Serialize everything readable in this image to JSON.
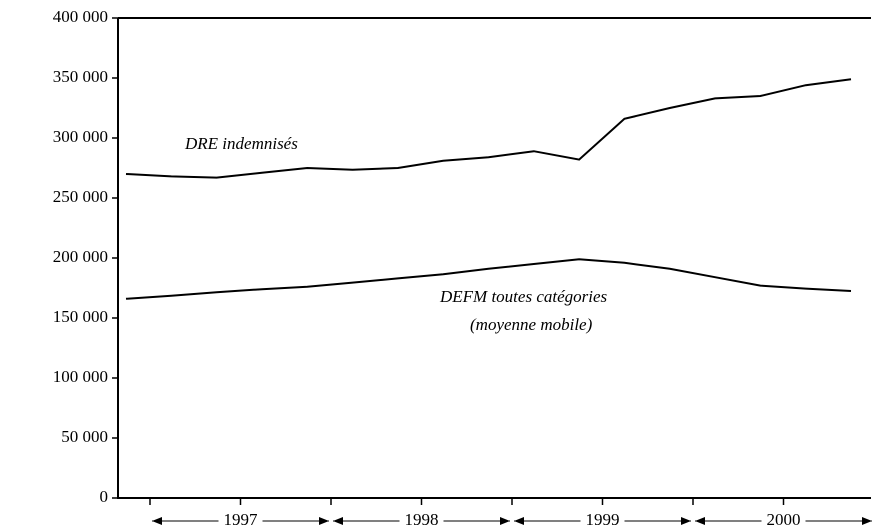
{
  "chart_data": {
    "type": "line",
    "categories": [
      null,
      null,
      null,
      null,
      null,
      null,
      null,
      null,
      null,
      null,
      null,
      null,
      null,
      null,
      null,
      null,
      null
    ],
    "x_groups": [
      "1997",
      "1998",
      "1999",
      "2000"
    ],
    "series": [
      {
        "name": "DRE indemnisés",
        "color": "#000000",
        "values": [
          270000,
          268000,
          267000,
          271000,
          275000,
          273500,
          275000,
          281000,
          284000,
          289000,
          282000,
          316000,
          325000,
          333000,
          335000,
          344000,
          349000
        ]
      },
      {
        "name": "DEFM toutes catégories",
        "color": "#000000",
        "values": [
          166000,
          168500,
          171500,
          174000,
          176000,
          179500,
          183000,
          186500,
          191000,
          195000,
          199000,
          196000,
          191000,
          184000,
          177000,
          174500,
          172500
        ]
      }
    ],
    "annotations": [
      "DRE indemnisés",
      "DEFM toutes catégories",
      "(moyenne mobile)"
    ],
    "ylim": [
      0,
      400000
    ],
    "yticks": [
      0,
      {
        "value": 50000,
        "label": "50 000"
      },
      {
        "value": 100000,
        "label": "100 000"
      },
      {
        "value": 150000,
        "label": "150 000"
      },
      {
        "value": 200000,
        "label": "200 000"
      },
      {
        "value": 250000,
        "label": "250 000"
      },
      {
        "value": 300000,
        "label": "300 000"
      },
      {
        "value": 350000,
        "label": "350 000"
      },
      {
        "value": 400000,
        "label": "400 000"
      }
    ],
    "grid": false
  }
}
